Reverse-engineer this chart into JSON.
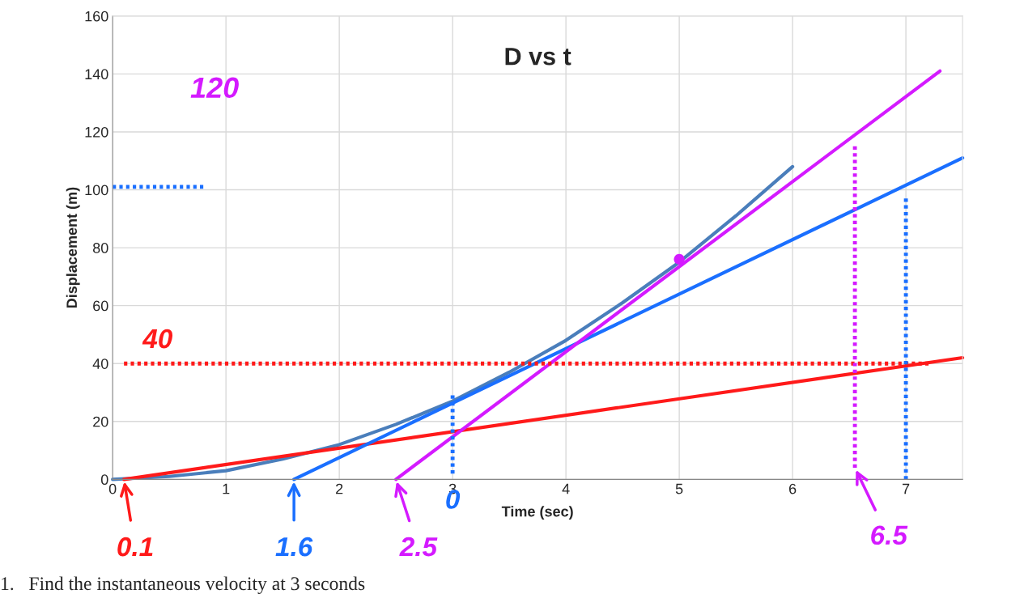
{
  "chart_data": {
    "type": "line",
    "title": "D vs t",
    "xlabel": "Time (sec)",
    "ylabel": "Displacement (m)",
    "xlim": [
      0,
      7.5
    ],
    "ylim": [
      0,
      160
    ],
    "xticks": [
      0,
      1,
      2,
      3,
      4,
      5,
      6,
      7
    ],
    "yticks": [
      0,
      20,
      40,
      60,
      80,
      100,
      120,
      140,
      160
    ],
    "grid": true,
    "series": [
      {
        "color": "#4a7ebb",
        "x": [
          0,
          0.5,
          1,
          1.5,
          2,
          2.5,
          3,
          3.5,
          4,
          4.5,
          5,
          5.5,
          6
        ],
        "values": [
          0,
          1,
          3,
          7,
          12,
          19,
          27,
          37,
          48,
          61,
          75,
          91,
          108
        ]
      },
      {
        "color": "#ff1a1a",
        "x": [
          0.1,
          7.5
        ],
        "values": [
          0,
          42
        ]
      },
      {
        "color": "#1a6fff",
        "x": [
          1.6,
          7.5
        ],
        "values": [
          0,
          111
        ]
      },
      {
        "color": "#d41aff",
        "x": [
          2.5,
          7.3
        ],
        "values": [
          0,
          141
        ]
      },
      {
        "type": "scatter",
        "color": "#d41aff",
        "x": [
          5
        ],
        "values": [
          76
        ]
      },
      {
        "color": "#ff1a1a",
        "line_style": "dotted",
        "x": [
          0.1,
          7.2
        ],
        "values": [
          40,
          40
        ]
      },
      {
        "color": "#1a6fff",
        "line_style": "dotted",
        "x": [
          0,
          0.8
        ],
        "values": [
          101,
          101
        ]
      },
      {
        "color": "#1a6fff",
        "line_style": "dotted",
        "x": [
          3,
          3
        ],
        "values": [
          2,
          29
        ]
      },
      {
        "color": "#1a6fff",
        "line_style": "dotted",
        "x": [
          7,
          7
        ],
        "values": [
          0,
          97
        ]
      },
      {
        "color": "#d41aff",
        "line_style": "dotted",
        "x": [
          6.55,
          6.55
        ],
        "values": [
          4,
          115
        ]
      }
    ],
    "annotations": [
      "120",
      {
        "text": "40",
        "x": 0.1,
        "y": 40
      },
      {
        "text": "0.1",
        "x": 0.1,
        "y": 0
      },
      {
        "text": "1.6",
        "x": 1.6,
        "y": 0
      },
      {
        "text": "2.5",
        "x": 2.5,
        "y": 0
      },
      {
        "text": "0",
        "x": 3,
        "y": 2
      },
      {
        "text": "6.5",
        "x": 6.55,
        "y": 4
      },
      "1.   Find the instantaneous velocity at 3 seconds"
    ]
  }
}
